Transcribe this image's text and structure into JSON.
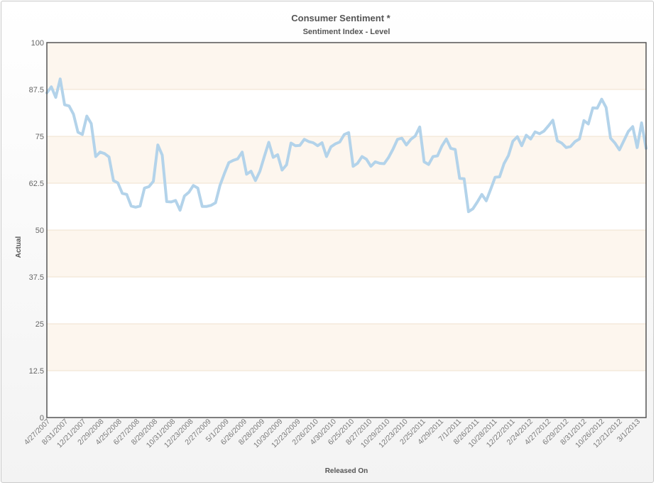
{
  "chart_data": {
    "type": "line",
    "title": "Consumer Sentiment *",
    "subtitle": "Sentiment Index - Level",
    "xlabel": "Released On",
    "ylabel": "Actual",
    "ylim": [
      0,
      100
    ],
    "y_ticks": [
      "0",
      "12.5",
      "25",
      "37.5",
      "50",
      "62.5",
      "75",
      "87.5",
      "100"
    ],
    "x_tick_labels": [
      "4/27/2007",
      "8/31/2007",
      "12/21/2007",
      "2/29/2008",
      "4/25/2008",
      "6/27/2008",
      "8/29/2008",
      "10/31/2008",
      "12/23/2008",
      "2/27/2009",
      "5/1/2009",
      "6/26/2009",
      "8/28/2009",
      "10/30/2009",
      "12/23/2009",
      "2/26/2010",
      "4/30/2010",
      "6/25/2010",
      "8/27/2010",
      "10/29/2010",
      "12/23/2010",
      "2/25/2011",
      "4/29/2011",
      "7/1/2011",
      "8/26/2011",
      "10/28/2011",
      "12/22/2011",
      "2/24/2012",
      "4/27/2012",
      "6/29/2012",
      "8/31/2012",
      "10/26/2012",
      "12/21/2012",
      "3/1/2013"
    ],
    "grid": true,
    "legend": "none",
    "colors": {
      "line": "#b3d3ea",
      "band": "#fdf6ee",
      "gridline": "#f0e2cf",
      "axis": "#555555"
    },
    "series": [
      {
        "values": [
          86.6,
          88.2,
          85.4,
          90.3,
          83.4,
          83.1,
          80.9,
          76.1,
          75.5,
          80.4,
          78.4,
          69.6,
          70.8,
          70.4,
          69.5,
          63.2,
          62.6,
          59.8,
          59.5,
          56.4,
          56.1,
          56.4,
          61.2,
          61.6,
          63.0,
          72.7,
          70.0,
          57.6,
          57.5,
          57.9,
          55.3,
          59.1,
          60.1,
          61.9,
          61.2,
          56.3,
          56.3,
          56.6,
          57.3,
          61.9,
          65.1,
          68.0,
          68.6,
          69.0,
          70.8,
          64.9,
          65.7,
          63.2,
          65.7,
          69.6,
          73.4,
          69.4,
          70.1,
          66.0,
          67.4,
          73.2,
          72.5,
          72.6,
          74.2,
          73.6,
          73.3,
          72.5,
          73.3,
          69.6,
          72.2,
          73.0,
          73.5,
          75.5,
          76.0,
          67.0,
          67.8,
          69.6,
          68.9,
          67.0,
          68.2,
          67.8,
          67.7,
          69.4,
          71.6,
          74.2,
          74.5,
          72.7,
          74.2,
          75.1,
          77.5,
          68.2,
          67.5,
          69.6,
          69.8,
          72.4,
          74.3,
          71.8,
          71.5,
          63.8,
          63.7,
          54.9,
          55.7,
          57.5,
          59.5,
          57.8,
          60.9,
          64.1,
          64.2,
          67.7,
          69.9,
          73.7,
          74.9,
          72.5,
          75.3,
          74.3,
          76.2,
          75.7,
          76.4,
          77.8,
          79.3,
          73.8,
          73.2,
          72.0,
          72.3,
          73.6,
          74.3,
          79.2,
          78.3,
          82.6,
          82.5,
          84.9,
          82.7,
          74.5,
          73.2,
          71.4,
          73.8,
          76.3,
          77.6,
          72.0,
          78.6,
          71.8
        ]
      }
    ]
  }
}
